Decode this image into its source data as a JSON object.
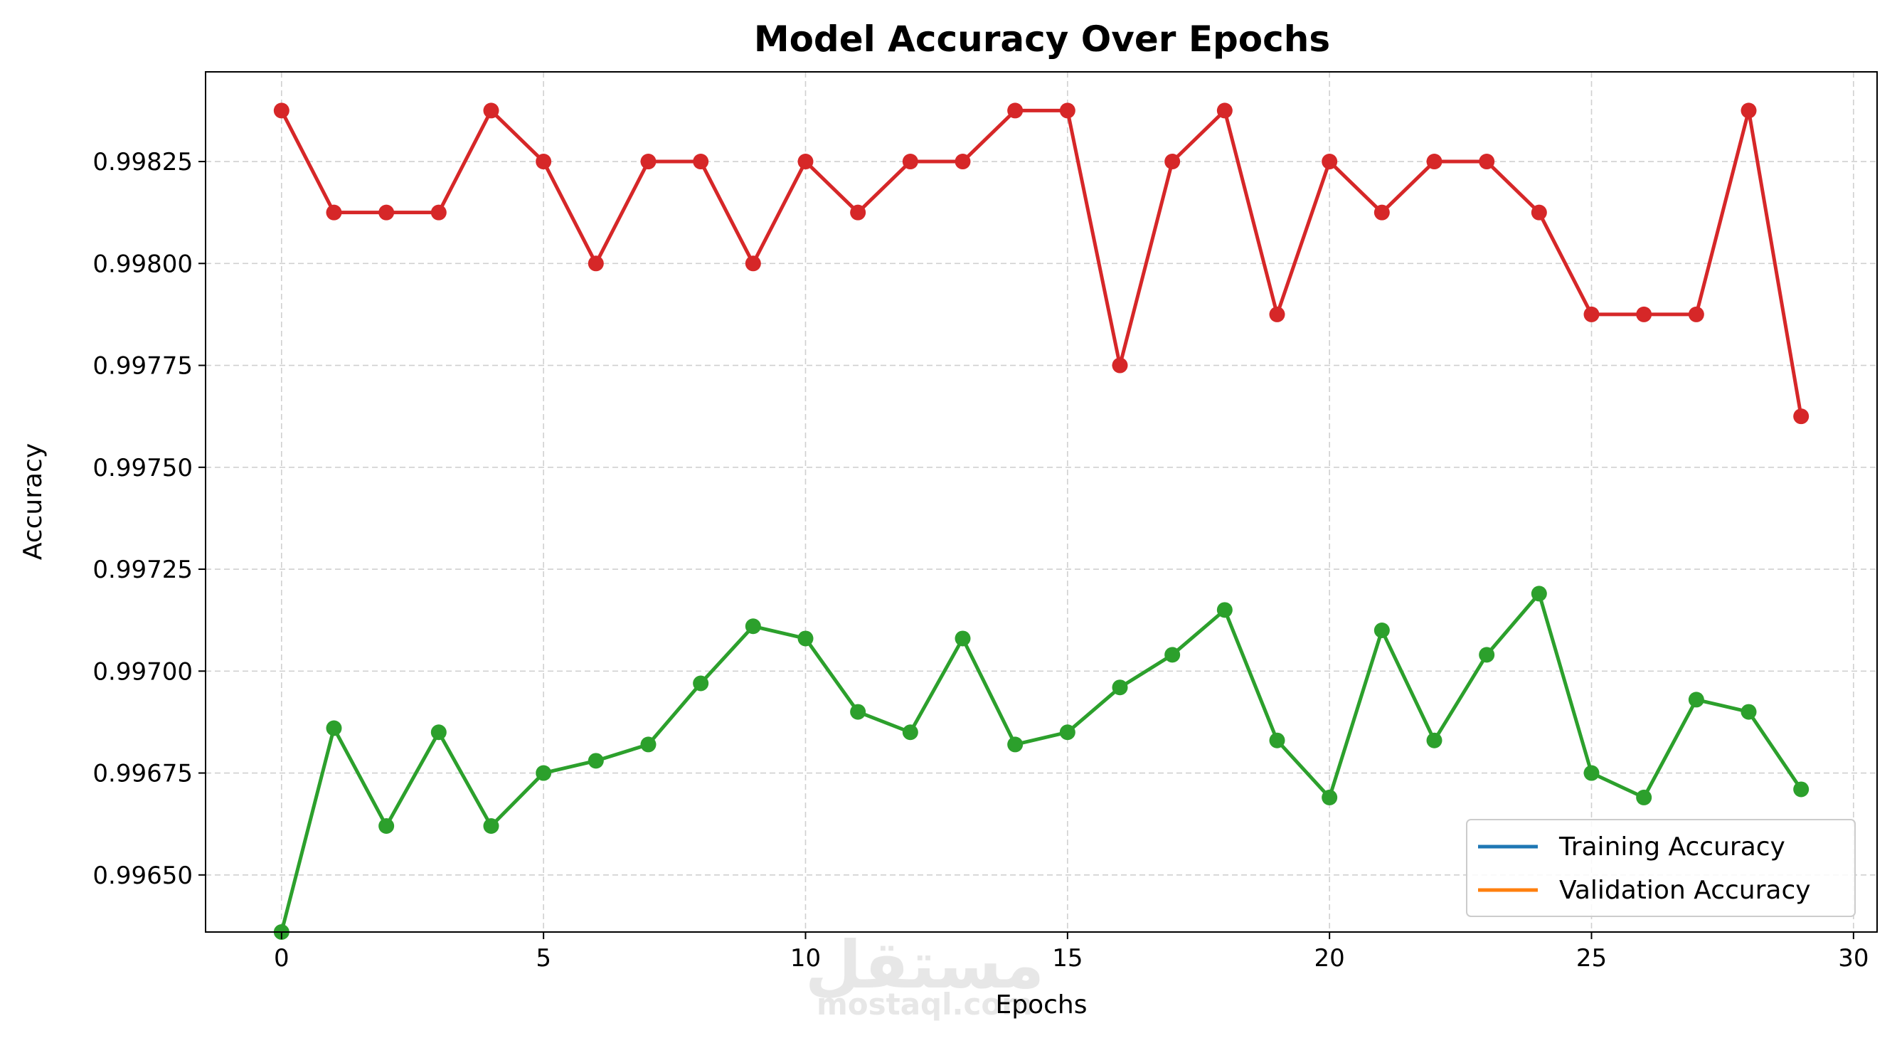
{
  "chart_data": {
    "type": "line",
    "title": "Model Accuracy Over Epochs",
    "xlabel": "Epochs",
    "ylabel": "Accuracy",
    "xlim": [
      -1.45,
      30.45
    ],
    "ylim": [
      0.99636,
      0.99847
    ],
    "xticks": [
      0,
      5,
      10,
      15,
      20,
      25,
      30
    ],
    "yticks": [
      0.9965,
      0.99675,
      0.997,
      0.99725,
      0.9975,
      0.99775,
      0.998,
      0.99825
    ],
    "ytick_labels": [
      "0.99650",
      "0.99675",
      "0.99700",
      "0.99725",
      "0.99750",
      "0.99775",
      "0.99800",
      "0.99825"
    ],
    "grid": true,
    "legend_position": "lower-right",
    "legend": [
      {
        "name": "Training Accuracy",
        "color": "#1f77b4"
      },
      {
        "name": "Validation Accuracy",
        "color": "#ff7f0e"
      }
    ],
    "series": [
      {
        "color": "#d62728",
        "x": [
          0,
          1,
          2,
          3,
          4,
          5,
          6,
          7,
          8,
          9,
          10,
          11,
          12,
          13,
          14,
          15,
          16,
          17,
          18,
          19,
          20,
          21,
          22,
          23,
          24,
          25,
          26,
          27,
          28,
          29
        ],
        "values": [
          0.998375,
          0.998125,
          0.998125,
          0.998125,
          0.998375,
          0.99825,
          0.998,
          0.99825,
          0.99825,
          0.998,
          0.99825,
          0.998125,
          0.99825,
          0.99825,
          0.998375,
          0.998375,
          0.99775,
          0.99825,
          0.998375,
          0.997875,
          0.99825,
          0.998125,
          0.99825,
          0.99825,
          0.998125,
          0.997875,
          0.997875,
          0.997875,
          0.998375,
          0.997625
        ]
      },
      {
        "color": "#2ca02c",
        "x": [
          0,
          1,
          2,
          3,
          4,
          5,
          6,
          7,
          8,
          9,
          10,
          11,
          12,
          13,
          14,
          15,
          16,
          17,
          18,
          19,
          20,
          21,
          22,
          23,
          24,
          25,
          26,
          27,
          28,
          29
        ],
        "values": [
          0.99636,
          0.99686,
          0.99662,
          0.99685,
          0.99662,
          0.99675,
          0.99678,
          0.99682,
          0.99697,
          0.99711,
          0.99708,
          0.9969,
          0.99685,
          0.99708,
          0.99682,
          0.99685,
          0.99696,
          0.99704,
          0.99715,
          0.99683,
          0.99669,
          0.9971,
          0.99683,
          0.99704,
          0.99719,
          0.99675,
          0.99669,
          0.99693,
          0.9969,
          0.99671
        ]
      }
    ]
  },
  "watermark": {
    "arabic": "مستقل",
    "latin": "mostaql.com"
  }
}
